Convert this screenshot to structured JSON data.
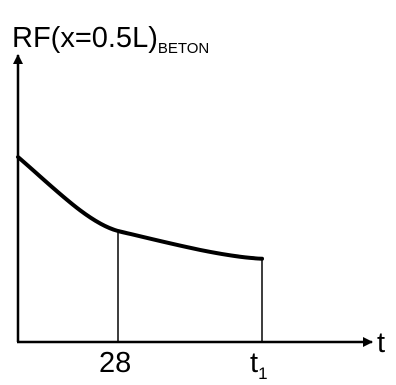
{
  "chart_data": {
    "type": "line",
    "ylabel": {
      "main": "RF(x=0.5L)",
      "subscript": "BETON"
    },
    "xlabel": "t",
    "ticks": [
      {
        "label": "28",
        "subscript": ""
      },
      {
        "label": "t",
        "subscript": "1"
      }
    ],
    "series": [
      {
        "x": [
          "0",
          "28",
          "t1"
        ],
        "y": [
          1.0,
          0.6,
          0.45
        ]
      }
    ],
    "colors": {
      "line": "#000000",
      "axis": "#000000"
    }
  }
}
